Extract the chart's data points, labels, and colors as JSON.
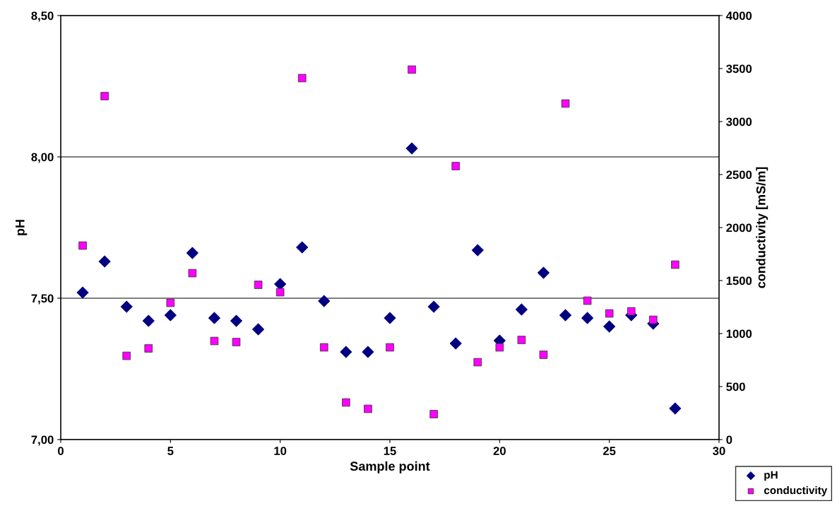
{
  "chart_data": {
    "type": "scatter",
    "xlabel": "Sample point",
    "ylabel": "pH",
    "y2label": "conductivity [mS/m]",
    "x": [
      1,
      2,
      3,
      4,
      5,
      6,
      7,
      8,
      9,
      10,
      11,
      12,
      13,
      14,
      15,
      16,
      17,
      18,
      19,
      20,
      21,
      22,
      23,
      24,
      25,
      26,
      27,
      28
    ],
    "series": [
      {
        "name": "pH",
        "color": "#000080",
        "marker": "diamond",
        "values": [
          7.52,
          7.63,
          7.47,
          7.42,
          7.44,
          7.66,
          7.43,
          7.42,
          7.39,
          7.55,
          7.68,
          7.49,
          7.31,
          7.31,
          7.43,
          8.03,
          7.47,
          7.34,
          7.67,
          7.35,
          7.46,
          7.59,
          7.44,
          7.43,
          7.4,
          7.44,
          7.41,
          7.11
        ]
      },
      {
        "name": "conductivity",
        "color": "#ff00ff",
        "marker": "square",
        "axis": "y2",
        "values": [
          1830,
          3240,
          790,
          860,
          1290,
          1570,
          930,
          920,
          1460,
          1390,
          3410,
          870,
          350,
          290,
          870,
          3490,
          240,
          2580,
          730,
          870,
          940,
          800,
          3170,
          1310,
          1190,
          1210,
          1130,
          1650
        ]
      }
    ],
    "xlim": [
      0,
      30
    ],
    "xticks": [
      0,
      5,
      10,
      15,
      20,
      25,
      30
    ],
    "ylim": [
      7.0,
      8.5
    ],
    "yticks": [
      {
        "value": 7.0,
        "label": "7,00"
      },
      {
        "value": 7.5,
        "label": "7,50"
      },
      {
        "value": 8.0,
        "label": "8,00"
      },
      {
        "value": 8.5,
        "label": "8,50"
      }
    ],
    "y2lim": [
      0,
      4000
    ],
    "y2ticks": [
      0,
      500,
      1000,
      1500,
      2000,
      2500,
      3000,
      3500,
      4000
    ],
    "grid": "y",
    "legend": "bottom right"
  }
}
